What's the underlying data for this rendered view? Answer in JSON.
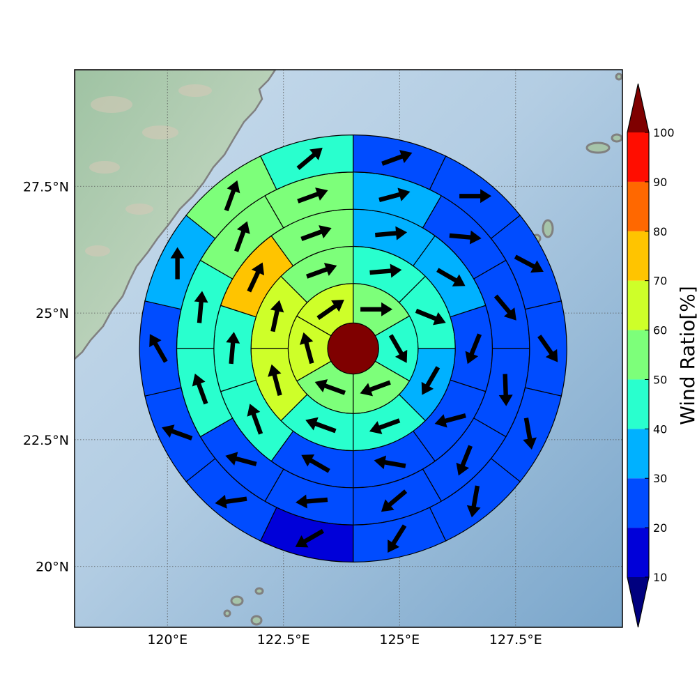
{
  "map": {
    "lon_min": 118,
    "lon_max": 129.8,
    "lat_min": 18.8,
    "lat_max": 29.8,
    "lon_ticks": [
      {
        "value": 120,
        "label": "120°E"
      },
      {
        "value": 122.5,
        "label": "122.5°E"
      },
      {
        "value": 125,
        "label": "125°E"
      },
      {
        "value": 127.5,
        "label": "127.5°E"
      }
    ],
    "lat_ticks": [
      {
        "value": 27.5,
        "label": "27.5°N"
      },
      {
        "value": 25,
        "label": "25°N"
      },
      {
        "value": 22.5,
        "label": "22.5°N"
      },
      {
        "value": 20,
        "label": "20°N"
      }
    ],
    "land_color": "#a9c9b0",
    "ocean_color": "#a9c6df",
    "coast_color": "#808080"
  },
  "chart_data": {
    "type": "heatmap",
    "center": {
      "lon": 124.0,
      "lat": 24.3
    },
    "ring_edges_deg": [
      0,
      0.55,
      1.4,
      2.2,
      3.0,
      3.8,
      4.6
    ],
    "sectors_per_ring": [
      1,
      6,
      8,
      10,
      12,
      14
    ],
    "rings": [
      {
        "values": [
          100
        ],
        "angles": [
          null
        ]
      },
      {
        "values": [
          50,
          42,
          55,
          52,
          62,
          62
        ],
        "angles": [
          0,
          -60,
          -160,
          160,
          105,
          35
        ]
      },
      {
        "values": [
          42,
          42,
          36,
          44,
          48,
          62,
          62,
          55
        ],
        "angles": [
          5,
          -22,
          -120,
          -160,
          160,
          105,
          78,
          20
        ]
      },
      {
        "values": [
          35,
          35,
          25,
          25,
          25,
          25,
          40,
          45,
          75,
          55
        ],
        "angles": [
          5,
          -30,
          -112,
          -165,
          170,
          150,
          110,
          85,
          65,
          20
        ]
      },
      {
        "values": [
          35,
          25,
          25,
          25,
          25,
          25,
          25,
          25,
          45,
          45,
          50,
          50
        ],
        "angles": [
          15,
          -5,
          -50,
          -88,
          -112,
          -140,
          -175,
          165,
          110,
          85,
          70,
          20
        ]
      },
      {
        "values": [
          25,
          25,
          25,
          25,
          25,
          25,
          25,
          15,
          25,
          25,
          25,
          35,
          50,
          45
        ],
        "angles": [
          20,
          0,
          -28,
          -55,
          -80,
          -100,
          -122,
          -150,
          -172,
          160,
          120,
          90,
          70,
          40
        ]
      }
    ]
  },
  "colorbar": {
    "title": "Wind Ratio[%]",
    "ticks": [
      "10",
      "20",
      "30",
      "40",
      "50",
      "60",
      "70",
      "80",
      "90",
      "100"
    ],
    "under_color": "#00007f",
    "over_color": "#7f0000",
    "colors": [
      "#0000d9",
      "#004cff",
      "#00b1ff",
      "#29ffce",
      "#7dff7a",
      "#ceff29",
      "#ffc400",
      "#ff6800",
      "#ff0d00"
    ]
  }
}
